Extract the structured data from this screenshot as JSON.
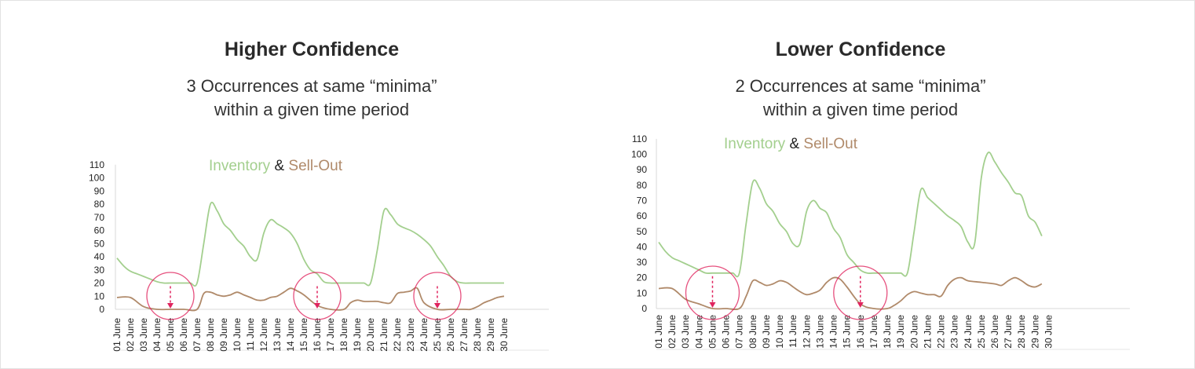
{
  "panels": [
    {
      "title": "Higher Confidence",
      "subtitle": [
        "3 Occurrences at same “minima”",
        "within a given time period"
      ]
    },
    {
      "title": "Lower Confidence",
      "subtitle": [
        "2 Occurrences at same “minima”",
        "within a given time period"
      ]
    }
  ],
  "chart_data": [
    {
      "type": "line",
      "legend": {
        "inventory": "Inventory",
        "amp": "&",
        "sellout": "Sell-Out"
      },
      "legend_placement": "top-center",
      "grid": false,
      "ylim": [
        0,
        110
      ],
      "yticks": [
        0,
        10,
        20,
        30,
        40,
        50,
        60,
        70,
        80,
        90,
        100,
        110
      ],
      "categories": [
        "01 June",
        "02 June",
        "03 June",
        "04 June",
        "05 June",
        "06 June",
        "07 June",
        "08 June",
        "09 June",
        "10 June",
        "11 June",
        "12 June",
        "13 June",
        "14 June",
        "15 June",
        "16 June",
        "17 June",
        "18 June",
        "19 June",
        "20 June",
        "21 June",
        "22 June",
        "23 June",
        "24 June",
        "25 June",
        "26 June",
        "27 June",
        "28 June",
        "29 June",
        "30 June"
      ],
      "series": [
        {
          "name": "Inventory",
          "color": "#a3cf8e",
          "x": [
            0,
            0.5,
            1,
            1.5,
            2,
            2.5,
            3,
            3.5,
            4,
            4.5,
            5,
            5.5,
            6,
            6.5,
            7,
            7.5,
            8,
            8.5,
            9,
            9.5,
            10,
            10.5,
            11,
            11.5,
            12,
            12.5,
            13,
            13.5,
            14,
            14.5,
            15,
            15.5,
            16,
            16.5,
            17,
            17.5,
            18,
            18.5,
            19,
            19.5,
            20,
            20.5,
            21,
            21.5,
            22,
            22.5,
            23,
            23.5,
            24,
            24.5,
            25,
            25.5,
            26,
            26.5,
            27,
            27.5,
            28,
            28.5,
            29
          ],
          "values": [
            39,
            33,
            29,
            27,
            25,
            23,
            21,
            20,
            20,
            20,
            20,
            20,
            20,
            50,
            80,
            75,
            65,
            60,
            53,
            48,
            40,
            38,
            58,
            68,
            65,
            62,
            58,
            50,
            38,
            30,
            27,
            21,
            20,
            20,
            20,
            20,
            20,
            20,
            20,
            45,
            75,
            72,
            65,
            62,
            60,
            57,
            53,
            48,
            40,
            33,
            25,
            21,
            20,
            20,
            20,
            20,
            20,
            20,
            20
          ]
        },
        {
          "name": "Sell-Out",
          "color": "#b08a6a",
          "x": [
            0,
            1,
            2,
            3,
            4,
            5,
            6,
            6.5,
            7,
            7.5,
            8,
            8.5,
            9,
            9.5,
            10,
            10.5,
            11,
            11.5,
            12,
            12.5,
            13,
            13.5,
            14,
            15,
            16,
            17,
            17.5,
            18,
            18.5,
            19,
            19.5,
            20,
            20.5,
            21,
            21.5,
            22,
            22.5,
            23,
            24,
            25,
            26,
            26.5,
            27,
            27.5,
            28,
            28.5,
            29
          ],
          "values": [
            9,
            9,
            2,
            0,
            0,
            0,
            0,
            12,
            13,
            11,
            10,
            11,
            13,
            11,
            9,
            7,
            7,
            9,
            10,
            13,
            16,
            14,
            11,
            3,
            0,
            0,
            5,
            7,
            6,
            6,
            6,
            5,
            5,
            12,
            13,
            14,
            16,
            5,
            0,
            0,
            0,
            0,
            2,
            5,
            7,
            9,
            10
          ]
        }
      ],
      "plateaus": [
        {
          "from": "04 June",
          "to": "06 June",
          "level": 20
        },
        {
          "from": "15 June",
          "to": "17 June",
          "level": 20
        },
        {
          "from": "24 June",
          "to": "26 June",
          "level": 20
        }
      ],
      "annotations": "red circles with dashed downward arrows mark each minima plateau",
      "annotation_color": "#e0245e"
    },
    {
      "type": "line",
      "legend": {
        "inventory": "Inventory",
        "amp": "&",
        "sellout": "Sell-Out"
      },
      "legend_placement": "top-center",
      "grid": false,
      "ylim": [
        0,
        110
      ],
      "yticks": [
        0,
        10,
        20,
        30,
        40,
        50,
        60,
        70,
        80,
        90,
        100,
        110
      ],
      "categories": [
        "01 June",
        "02 June",
        "03 June",
        "04 June",
        "05 June",
        "06 June",
        "07 June",
        "08 June",
        "09 June",
        "10 June",
        "11 June",
        "12 June",
        "13 June",
        "14 June",
        "15 June",
        "16 June",
        "17 June",
        "18 June",
        "19 June",
        "20 June",
        "21 June",
        "22 June",
        "23 June",
        "24 June",
        "25 June",
        "26 June",
        "27 June",
        "28 June",
        "29 June",
        "30 June"
      ],
      "series": [
        {
          "name": "Inventory",
          "color": "#a3cf8e",
          "x": [
            0,
            0.5,
            1,
            1.5,
            2,
            2.5,
            3,
            3.5,
            4,
            4.5,
            5,
            5.5,
            6,
            6.5,
            7,
            7.5,
            8,
            8.5,
            9,
            9.5,
            10,
            10.5,
            11,
            11.5,
            12,
            12.5,
            13,
            13.5,
            14,
            14.5,
            15,
            15.5,
            16,
            16.5,
            17,
            17.5,
            18,
            18.5,
            19,
            19.5,
            20,
            20.5,
            21,
            21.5,
            22,
            22.5,
            23,
            23.5,
            24,
            24.5,
            25,
            25.5,
            26,
            26.5,
            27,
            27.5,
            28,
            28.5
          ],
          "values": [
            43,
            37,
            33,
            31,
            29,
            27,
            25,
            23,
            23,
            23,
            23,
            23,
            23,
            55,
            82,
            78,
            68,
            63,
            55,
            50,
            42,
            42,
            63,
            70,
            65,
            62,
            52,
            46,
            35,
            30,
            25,
            23,
            23,
            23,
            23,
            23,
            23,
            23,
            50,
            77,
            72,
            68,
            64,
            60,
            57,
            53,
            43,
            42,
            85,
            101,
            95,
            88,
            82,
            75,
            73,
            60,
            56,
            47
          ]
        },
        {
          "name": "Sell-Out",
          "color": "#b08a6a",
          "x": [
            0,
            1,
            2,
            3,
            4,
            5,
            6,
            6.5,
            7,
            7.5,
            8,
            8.5,
            9,
            9.5,
            10,
            10.5,
            11,
            11.5,
            12,
            12.5,
            13,
            13.5,
            14,
            15,
            16,
            17,
            17.5,
            18,
            18.5,
            19,
            19.5,
            20,
            20.5,
            21,
            21.5,
            22,
            22.5,
            23,
            24,
            25,
            25.5,
            26,
            26.5,
            27,
            27.5,
            28,
            28.5
          ],
          "values": [
            13,
            13,
            6,
            3,
            0,
            0,
            0,
            8,
            18,
            17,
            15,
            16,
            18,
            17,
            14,
            11,
            9,
            10,
            12,
            17,
            20,
            19,
            14,
            3,
            0,
            0,
            2,
            5,
            9,
            11,
            10,
            9,
            9,
            8,
            15,
            19,
            20,
            18,
            17,
            16,
            15,
            18,
            20,
            18,
            15,
            14,
            16
          ]
        }
      ],
      "plateaus": [
        {
          "from": "04 June",
          "to": "06 June",
          "level": 23
        },
        {
          "from": "15 June",
          "to": "17 June",
          "level": 23
        }
      ],
      "annotations": "red circles with dashed downward arrows mark each minima plateau",
      "annotation_color": "#e0245e"
    }
  ]
}
